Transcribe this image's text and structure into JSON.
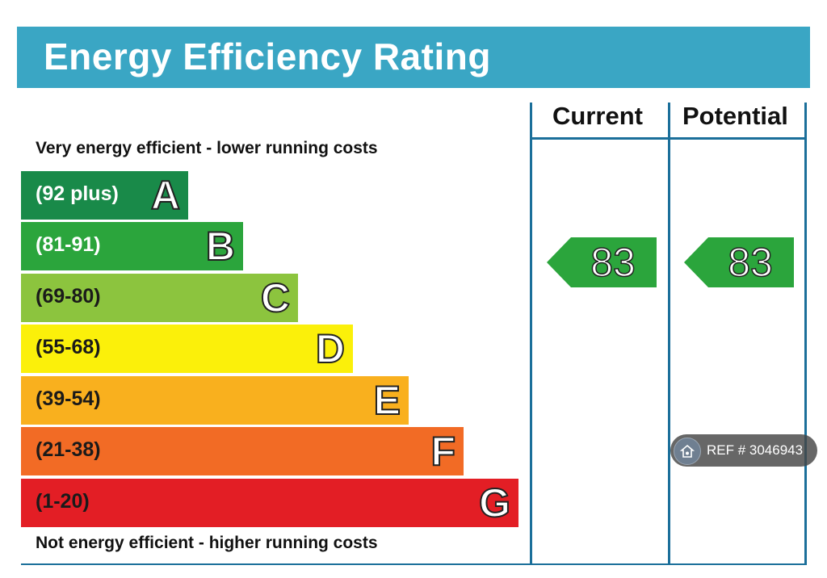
{
  "header": {
    "title": "Energy Efficiency Rating"
  },
  "captions": {
    "top": "Very energy efficient - lower running costs",
    "bottom": "Not energy efficient - higher running costs"
  },
  "columns": {
    "current": "Current",
    "potential": "Potential"
  },
  "chart_data": {
    "type": "bar",
    "bands": [
      {
        "range": "(92 plus)",
        "letter": "A",
        "color": "#198a49",
        "text_color": "#ffffff"
      },
      {
        "range": "(81-91)",
        "letter": "B",
        "color": "#2ba53c",
        "text_color": "#ffffff"
      },
      {
        "range": "(69-80)",
        "letter": "C",
        "color": "#8cc43e",
        "text_color": "#1a1a1a"
      },
      {
        "range": "(55-68)",
        "letter": "D",
        "color": "#fbf00a",
        "text_color": "#1a1a1a"
      },
      {
        "range": "(39-54)",
        "letter": "E",
        "color": "#f9b01e",
        "text_color": "#1a1a1a"
      },
      {
        "range": "(21-38)",
        "letter": "F",
        "color": "#f26b25",
        "text_color": "#1a1a1a"
      },
      {
        "range": "(1-20)",
        "letter": "G",
        "color": "#e31e25",
        "text_color": "#1a1a1a"
      }
    ],
    "current": {
      "value": "83",
      "band": "B",
      "color": "#2ba53c"
    },
    "potential": {
      "value": "83",
      "band": "B",
      "color": "#2ba53c"
    }
  },
  "ref_badge": {
    "icon": "home-icon",
    "text": "REF # 3046943"
  }
}
